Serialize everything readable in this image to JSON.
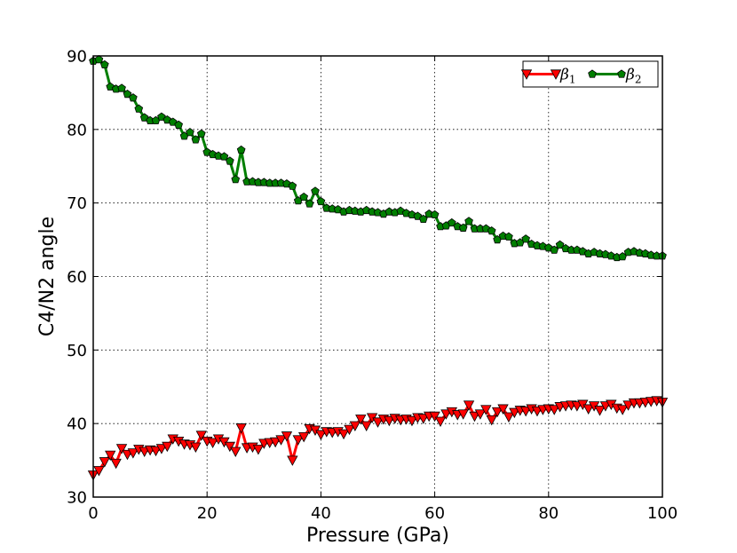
{
  "chart_data": {
    "type": "line",
    "xlabel": "Pressure (GPa)",
    "ylabel": "C4/N2 angle",
    "xlim": [
      0,
      100
    ],
    "ylim": [
      30,
      90
    ],
    "xticks": [
      0,
      20,
      40,
      60,
      80,
      100
    ],
    "yticks": [
      30,
      40,
      50,
      60,
      70,
      80,
      90
    ],
    "grid": true,
    "legend_position": "top-right",
    "series": [
      {
        "name": "β1",
        "legend_symbol": "β",
        "legend_subscript": "1",
        "color": "#ff0000",
        "marker": "triangle-down",
        "x": [
          0,
          1,
          2,
          3,
          4,
          5,
          6,
          7,
          8,
          9,
          10,
          11,
          12,
          13,
          14,
          15,
          16,
          17,
          18,
          19,
          20,
          21,
          22,
          23,
          24,
          25,
          26,
          27,
          28,
          29,
          30,
          31,
          32,
          33,
          34,
          35,
          36,
          37,
          38,
          39,
          40,
          41,
          42,
          43,
          44,
          45,
          46,
          47,
          48,
          49,
          50,
          51,
          52,
          53,
          54,
          55,
          56,
          57,
          58,
          59,
          60,
          61,
          62,
          63,
          64,
          65,
          66,
          67,
          68,
          69,
          70,
          71,
          72,
          73,
          74,
          75,
          76,
          77,
          78,
          79,
          80,
          81,
          82,
          83,
          84,
          85,
          86,
          87,
          88,
          89,
          90,
          91,
          92,
          93,
          94,
          95,
          96,
          97,
          98,
          99,
          100
        ],
        "y": [
          33,
          33.6,
          34.8,
          35.7,
          34.6,
          36.6,
          35.8,
          36,
          36.5,
          36.2,
          36.4,
          36.3,
          36.6,
          36.9,
          37.9,
          37.6,
          37.2,
          37.1,
          36.8,
          38.4,
          37.6,
          37.4,
          37.9,
          37.5,
          36.9,
          36.2,
          39.4,
          36.7,
          36.8,
          36.5,
          37.3,
          37.4,
          37.5,
          37.8,
          38.3,
          35,
          37.8,
          38.2,
          39.3,
          39.1,
          38.5,
          38.9,
          38.8,
          38.9,
          38.6,
          39.2,
          39.7,
          40.6,
          39.7,
          40.8,
          40.2,
          40.6,
          40.4,
          40.7,
          40.5,
          40.6,
          40.4,
          40.8,
          40.7,
          41,
          41,
          40.3,
          41.3,
          41.6,
          41.2,
          41.3,
          42.5,
          41,
          41.3,
          41.9,
          40.5,
          41.6,
          42,
          40.9,
          41.5,
          41.8,
          41.7,
          42,
          41.7,
          41.9,
          42,
          41.9,
          42.3,
          42.4,
          42.5,
          42.4,
          42.6,
          42,
          42.4,
          41.8,
          42.4,
          42.6,
          42.1,
          41.9,
          42.5,
          42.8,
          42.8,
          42.9,
          43,
          43.1,
          42.9
        ]
      },
      {
        "name": "β2",
        "legend_symbol": "β",
        "legend_subscript": "2",
        "color": "#007f00",
        "marker": "pentagon",
        "x": [
          0,
          1,
          2,
          3,
          4,
          5,
          6,
          7,
          8,
          9,
          10,
          11,
          12,
          13,
          14,
          15,
          16,
          17,
          18,
          19,
          20,
          21,
          22,
          23,
          24,
          25,
          26,
          27,
          28,
          29,
          30,
          31,
          32,
          33,
          34,
          35,
          36,
          37,
          38,
          39,
          40,
          41,
          42,
          43,
          44,
          45,
          46,
          47,
          48,
          49,
          50,
          51,
          52,
          53,
          54,
          55,
          56,
          57,
          58,
          59,
          60,
          61,
          62,
          63,
          64,
          65,
          66,
          67,
          68,
          69,
          70,
          71,
          72,
          73,
          74,
          75,
          76,
          77,
          78,
          79,
          80,
          81,
          82,
          83,
          84,
          85,
          86,
          87,
          88,
          89,
          90,
          91,
          92,
          93,
          94,
          95,
          96,
          97,
          98,
          99,
          100
        ],
        "y": [
          89.3,
          89.5,
          88.8,
          85.8,
          85.5,
          85.6,
          84.8,
          84.3,
          82.8,
          81.6,
          81.2,
          81.2,
          81.7,
          81.3,
          81,
          80.6,
          79.1,
          79.6,
          78.6,
          79.4,
          76.9,
          76.6,
          76.4,
          76.3,
          75.7,
          73.2,
          77.2,
          72.9,
          72.9,
          72.8,
          72.8,
          72.7,
          72.7,
          72.7,
          72.6,
          72.3,
          70.3,
          70.8,
          69.9,
          71.6,
          70.2,
          69.3,
          69.2,
          69.1,
          68.8,
          69,
          68.9,
          68.8,
          69,
          68.8,
          68.7,
          68.5,
          68.8,
          68.7,
          68.9,
          68.6,
          68.4,
          68.2,
          67.8,
          68.5,
          68.4,
          66.8,
          66.9,
          67.3,
          66.8,
          66.6,
          67.5,
          66.5,
          66.5,
          66.5,
          66.2,
          65,
          65.5,
          65.4,
          64.5,
          64.6,
          65.1,
          64.4,
          64.2,
          64.1,
          63.9,
          63.6,
          64.3,
          63.8,
          63.6,
          63.6,
          63.4,
          63.1,
          63.3,
          63.1,
          63,
          62.8,
          62.6,
          62.7,
          63.3,
          63.4,
          63.2,
          63.1,
          62.9,
          62.8,
          62.8
        ]
      }
    ]
  }
}
